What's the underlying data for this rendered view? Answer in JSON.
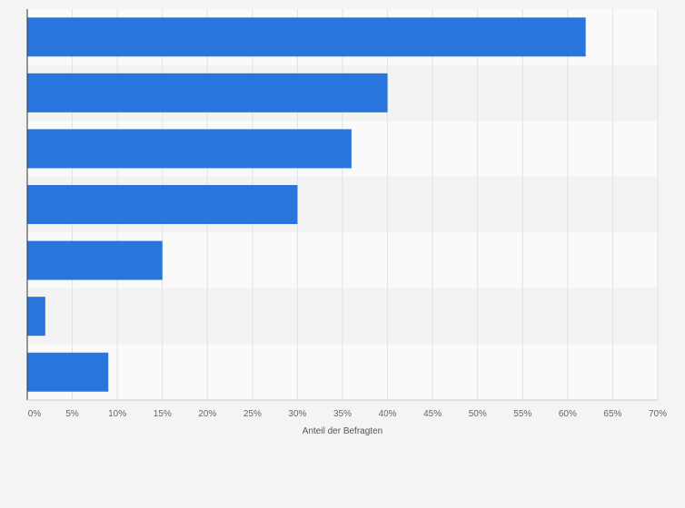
{
  "chart_data": {
    "type": "bar",
    "orientation": "horizontal",
    "categories": [
      "",
      "",
      "",
      "",
      "",
      "",
      ""
    ],
    "values": [
      62,
      40,
      36,
      30,
      15,
      2,
      9
    ],
    "xlabel": "Anteil der Befragten",
    "xlim": [
      0,
      70
    ],
    "x_ticks": [
      "0%",
      "5%",
      "10%",
      "15%",
      "20%",
      "25%",
      "30%",
      "35%",
      "40%",
      "45%",
      "50%",
      "55%",
      "60%",
      "65%",
      "70%"
    ],
    "grid": true,
    "bar_color": "#2876dd",
    "band_colors": [
      "#f3f3f3",
      "#fafafa"
    ],
    "background": "#f4f4f4"
  }
}
